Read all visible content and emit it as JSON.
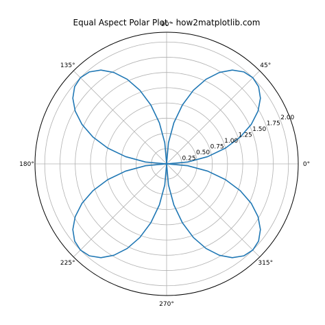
{
  "chart_data": {
    "type": "line",
    "projection": "polar",
    "title": "Equal Aspect Polar Plot - how2matplotlib.com",
    "theta_ticks_deg": [
      0,
      45,
      90,
      135,
      180,
      225,
      270,
      315
    ],
    "theta_tick_labels": [
      "0°",
      "45°",
      "90°",
      "135°",
      "180°",
      "225°",
      "270°",
      "315°"
    ],
    "r_ticks": [
      0.25,
      0.5,
      0.75,
      1.0,
      1.25,
      1.5,
      1.75,
      2.0
    ],
    "r_tick_labels": [
      "0.25",
      "0.50",
      "0.75",
      "1.00",
      "1.25",
      "1.50",
      "1.75",
      "2.00"
    ],
    "r_range": [
      0,
      2.16
    ],
    "grid": true,
    "series": [
      {
        "formula": "r = 2 * |sin(2 * theta)|, theta in degrees 0..360",
        "theta_deg": [
          0,
          5,
          10,
          15,
          20,
          25,
          30,
          35,
          40,
          45,
          50,
          55,
          60,
          65,
          70,
          75,
          80,
          85,
          90,
          95,
          100,
          105,
          110,
          115,
          120,
          125,
          130,
          135,
          140,
          145,
          150,
          155,
          160,
          165,
          170,
          175,
          180,
          185,
          190,
          195,
          200,
          205,
          210,
          215,
          220,
          225,
          230,
          235,
          240,
          245,
          250,
          255,
          260,
          265,
          270,
          275,
          280,
          285,
          290,
          295,
          300,
          305,
          310,
          315,
          320,
          325,
          330,
          335,
          340,
          345,
          350,
          355,
          360
        ],
        "r": [
          0.0,
          0.347,
          0.684,
          1.0,
          1.286,
          1.532,
          1.732,
          1.879,
          1.97,
          2.0,
          1.97,
          1.879,
          1.732,
          1.532,
          1.286,
          1.0,
          0.684,
          0.347,
          0.0,
          0.347,
          0.684,
          1.0,
          1.286,
          1.532,
          1.732,
          1.879,
          1.97,
          2.0,
          1.97,
          1.879,
          1.732,
          1.532,
          1.286,
          1.0,
          0.684,
          0.347,
          0.0,
          0.347,
          0.684,
          1.0,
          1.286,
          1.532,
          1.732,
          1.879,
          1.97,
          2.0,
          1.97,
          1.879,
          1.732,
          1.532,
          1.286,
          1.0,
          0.684,
          0.347,
          0.0,
          0.347,
          0.684,
          1.0,
          1.286,
          1.532,
          1.732,
          1.879,
          1.97,
          2.0,
          1.97,
          1.879,
          1.732,
          1.532,
          1.286,
          1.0,
          0.684,
          0.347,
          0.0
        ],
        "color": "#1f77b4"
      }
    ]
  },
  "colors": {
    "line": "#1f77b4",
    "grid": "#b0b0b0",
    "spine": "#000000",
    "background": "#ffffff"
  }
}
